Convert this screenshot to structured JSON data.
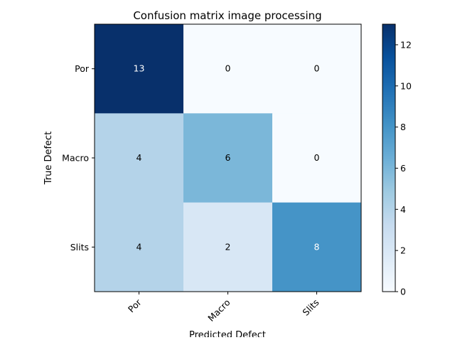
{
  "chart_data": {
    "type": "heatmap",
    "title": "Confusion matrix image processing",
    "xlabel": "Predicted Defect",
    "ylabel": "True Defect",
    "x_categories": [
      "Por",
      "Macro",
      "Slits"
    ],
    "y_categories": [
      "Por",
      "Macro",
      "Slits"
    ],
    "values": [
      [
        13,
        0,
        0
      ],
      [
        4,
        6,
        0
      ],
      [
        4,
        2,
        8
      ]
    ],
    "colormap": "Blues",
    "color_range": [
      0,
      13
    ],
    "colorbar_ticks": [
      "0",
      "2",
      "4",
      "6",
      "8",
      "10",
      "12"
    ],
    "grid": false
  }
}
